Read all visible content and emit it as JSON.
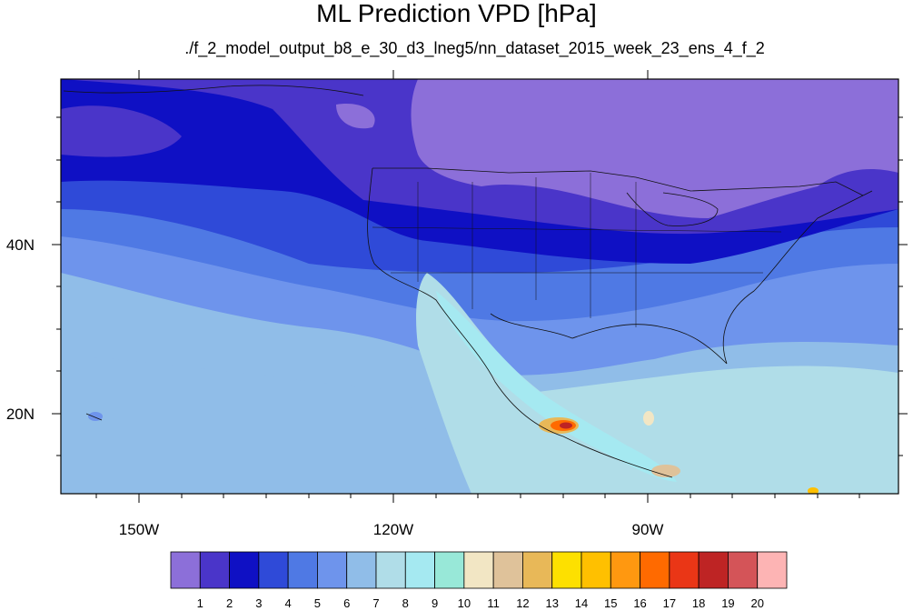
{
  "title": "ML Prediction VPD [hPa]",
  "subtitle": "./f_2_model_output_b8_e_30_d3_lneg5/nn_dataset_2015_week_23_ens_4_f_2",
  "lat_labels": [
    "40N",
    "20N"
  ],
  "lon_labels": [
    "150W",
    "120W",
    "90W"
  ],
  "colorbar": {
    "labels": [
      "1",
      "2",
      "3",
      "4",
      "5",
      "6",
      "7",
      "8",
      "9",
      "10",
      "11",
      "12",
      "13",
      "14",
      "15",
      "16",
      "17",
      "18",
      "19",
      "20"
    ],
    "colors": [
      "#8c6fd9",
      "#4a35c9",
      "#0f10c4",
      "#2f4ad8",
      "#4f79e4",
      "#6e94ec",
      "#90bde8",
      "#b0dde8",
      "#a5e9f1",
      "#98e8d8",
      "#f2e6c4",
      "#dfc29a",
      "#e8b858",
      "#fde000",
      "#ffc000",
      "#ff9810",
      "#ff6a00",
      "#ea3616",
      "#be2424",
      "#d45458",
      "#fdb4b4"
    ]
  },
  "chart_data": {
    "type": "heatmap",
    "title": "ML Prediction VPD [hPa]",
    "subtitle": "./f_2_model_output_b8_e_30_d3_lneg5/nn_dataset_2015_week_23_ens_4_f_2",
    "variable_unit": "hPa",
    "x_ticks": [
      "150W",
      "120W",
      "90W"
    ],
    "y_ticks": [
      "40N",
      "20N"
    ],
    "levels": [
      1,
      2,
      3,
      4,
      5,
      6,
      7,
      8,
      9,
      10,
      11,
      12,
      13,
      14,
      15,
      16,
      17,
      18,
      19,
      20
    ]
  }
}
